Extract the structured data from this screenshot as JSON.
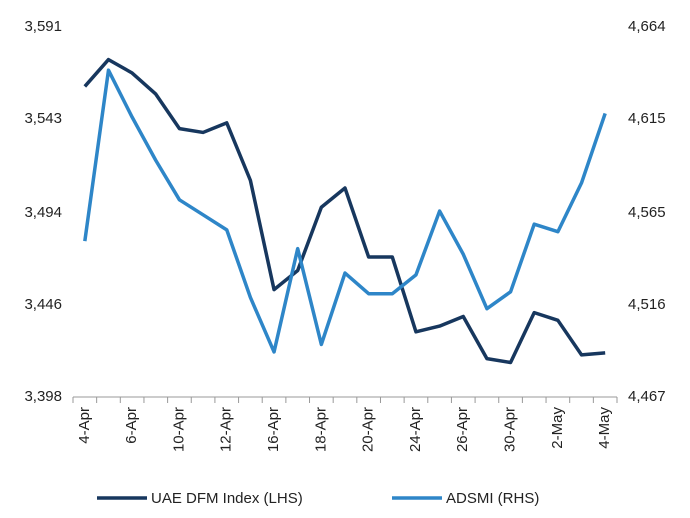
{
  "chart_data": {
    "type": "line",
    "categories": [
      "4-Apr",
      null,
      "6-Apr",
      null,
      "10-Apr",
      null,
      "12-Apr",
      null,
      "16-Apr",
      null,
      "18-Apr",
      null,
      "20-Apr",
      null,
      "24-Apr",
      null,
      "26-Apr",
      null,
      "30-Apr",
      null,
      "2-May",
      null,
      "4-May"
    ],
    "series": [
      {
        "name": "UAE DFM Index (LHS)",
        "color": "#17375e",
        "values": [
          3560,
          3574,
          3567,
          3556,
          3538,
          3536,
          3541,
          3511,
          3454,
          3464,
          3497,
          3507,
          3471,
          3471,
          3432,
          3435,
          3440,
          3418,
          3416,
          3442,
          3438,
          3420,
          3421
        ]
      },
      {
        "name": "ADSMI (RHS)",
        "color": "#2e86c8",
        "axis": "y2",
        "values": [
          4550,
          4641,
          4616,
          4593,
          4572,
          4564,
          4556,
          4520,
          4491,
          4546,
          4495,
          4533,
          4522,
          4522,
          4532,
          4566,
          4543,
          4514,
          4523,
          4559,
          4555,
          4581,
          4618
        ]
      }
    ],
    "ylim": [
      3398,
      3591
    ],
    "yticks": [
      {
        "value": 3398,
        "label": "3,398"
      },
      {
        "value": 3446,
        "label": "3,446"
      },
      {
        "value": 3494,
        "label": "3,494"
      },
      {
        "value": 3543,
        "label": "3,543"
      },
      {
        "value": 3591,
        "label": "3,591"
      }
    ],
    "y2lim": [
      4467,
      4664
    ],
    "y2ticks": [
      {
        "value": 4467,
        "label": "4,467"
      },
      {
        "value": 4516,
        "label": "4,516"
      },
      {
        "value": 4565,
        "label": "4,565"
      },
      {
        "value": 4615,
        "label": "4,615"
      },
      {
        "value": 4664,
        "label": "4,664"
      }
    ],
    "legend": "bottom"
  }
}
